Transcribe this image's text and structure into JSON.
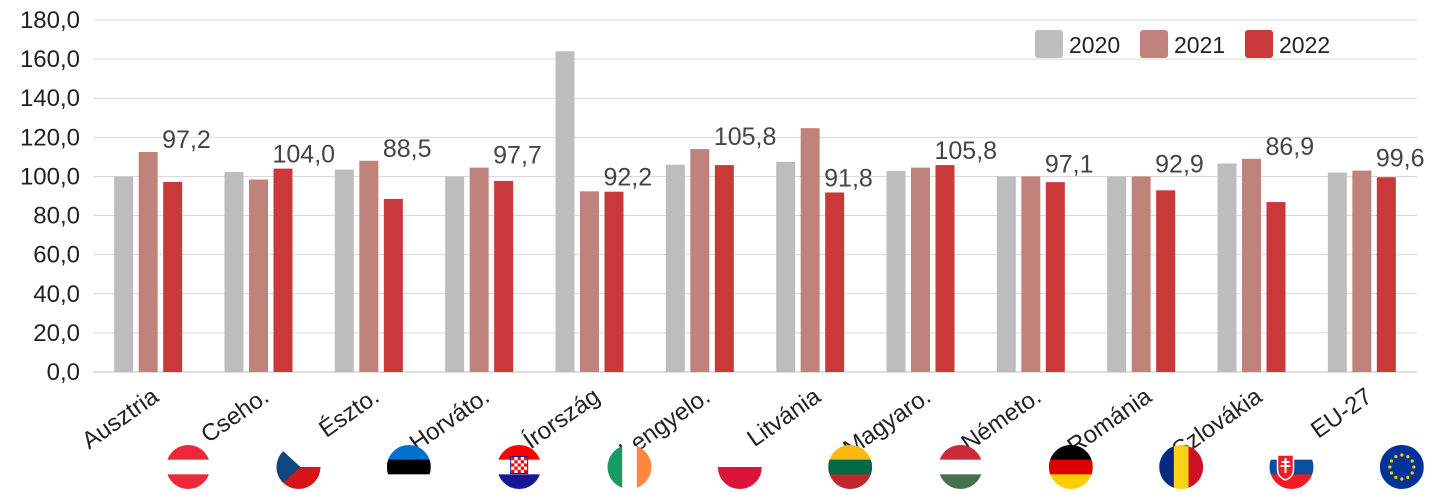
{
  "chart_data": {
    "type": "bar",
    "categories": [
      "Ausztria",
      "Cseho.",
      "Észto.",
      "Horváto.",
      "Írország",
      "Lengyelo.",
      "Litvánia",
      "Magyaro.",
      "Németo.",
      "Románia",
      "Szlovákia",
      "EU-27"
    ],
    "flag_icons": [
      "flag-austria-icon",
      "flag-czechia-icon",
      "flag-estonia-icon",
      "flag-croatia-icon",
      "flag-ireland-icon",
      "flag-poland-icon",
      "flag-lithuania-icon",
      "flag-hungary-icon",
      "flag-germany-icon",
      "flag-romania-icon",
      "flag-slovakia-icon",
      "flag-eu-icon"
    ],
    "series": [
      {
        "name": "2020",
        "color": "#bdbdbd",
        "values": [
          100.0,
          102.3,
          103.5,
          100.0,
          164.0,
          106.0,
          107.5,
          102.8,
          100.0,
          100.0,
          106.6,
          102.0
        ]
      },
      {
        "name": "2021",
        "color": "#bf837c",
        "values": [
          112.5,
          98.4,
          108.0,
          104.5,
          92.4,
          114.0,
          124.7,
          104.5,
          100.0,
          100.0,
          109.0,
          103.0
        ]
      },
      {
        "name": "2022",
        "color": "#c9393a",
        "values": [
          97.2,
          104.0,
          88.5,
          97.7,
          92.2,
          105.8,
          91.8,
          105.8,
          97.1,
          92.9,
          86.9,
          99.6
        ]
      }
    ],
    "data_labels": [
      "97,2",
      "104,0",
      "88,5",
      "97,7",
      "92,2",
      "105,8",
      "91,8",
      "105,8",
      "97,1",
      "92,9",
      "86,9",
      "99,6"
    ],
    "yticks": [
      "0,0",
      "20,0",
      "40,0",
      "60,0",
      "80,0",
      "100,0",
      "120,0",
      "140,0",
      "160,0",
      "180,0"
    ],
    "ylim": [
      0,
      180
    ],
    "grid": true,
    "legend_position": "top-right",
    "title": "",
    "xlabel": "",
    "ylabel": ""
  }
}
